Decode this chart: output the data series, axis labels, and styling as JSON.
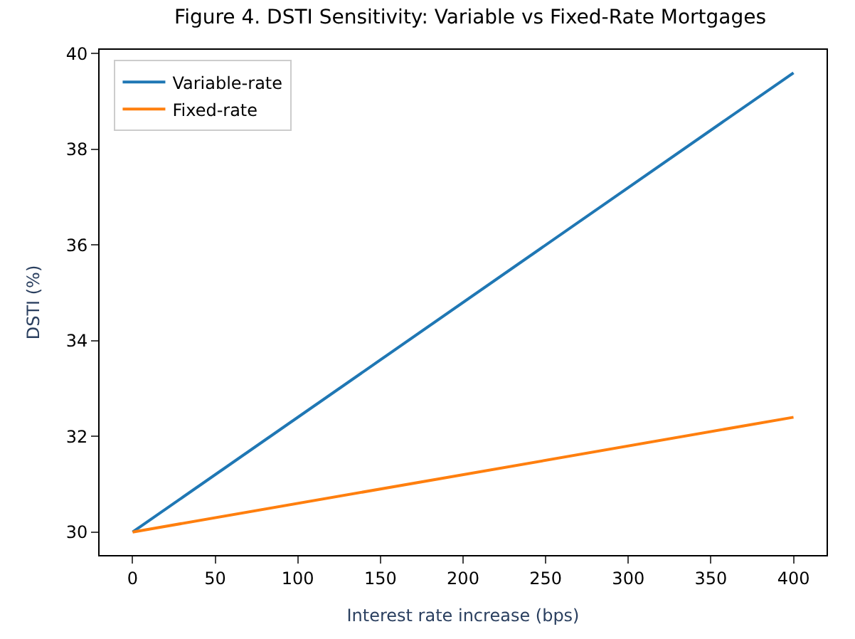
{
  "chart_data": {
    "type": "line",
    "title": "Figure 4. DSTI Sensitivity: Variable vs Fixed-Rate Mortgages",
    "xlabel": "Interest rate increase (bps)",
    "ylabel": "DSTI (%)",
    "x": [
      0,
      400
    ],
    "series": [
      {
        "name": "Variable-rate",
        "color": "#1f77b4",
        "values": [
          30,
          39.6
        ]
      },
      {
        "name": "Fixed-rate",
        "color": "#ff7f0e",
        "values": [
          30,
          32.4
        ]
      }
    ],
    "xlim": [
      -20,
      420
    ],
    "xticks": [
      0,
      50,
      100,
      150,
      200,
      250,
      300,
      350,
      400
    ],
    "ylim": [
      29.52,
      40.08
    ],
    "yticks": [
      30,
      32,
      34,
      36,
      38,
      40
    ],
    "grid": false,
    "legend": "top left",
    "marker": "none",
    "line_style": "solid"
  }
}
